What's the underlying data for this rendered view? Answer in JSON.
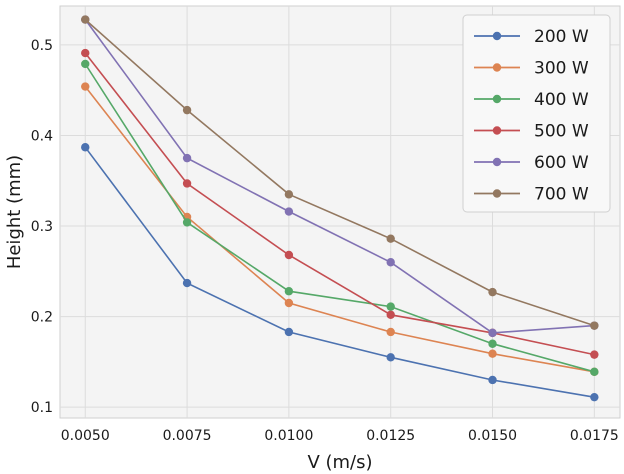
{
  "chart_data": {
    "type": "line",
    "title": "",
    "xlabel": "V (m/s)",
    "ylabel": "Height (mm)",
    "x": [
      0.005,
      0.0075,
      0.01,
      0.0125,
      0.015,
      0.0175
    ],
    "x_tick_labels": [
      "0.0050",
      "0.0075",
      "0.0100",
      "0.0125",
      "0.0150",
      "0.0175"
    ],
    "y_ticks": [
      0.1,
      0.2,
      0.3,
      0.4,
      0.5
    ],
    "y_tick_labels": [
      "0.1",
      "0.2",
      "0.3",
      "0.4",
      "0.5"
    ],
    "xlim": [
      0.00438,
      0.01813
    ],
    "ylim": [
      0.088,
      0.543
    ],
    "grid": true,
    "legend_position": "top-right",
    "series": [
      {
        "name": "200 W",
        "color": "#4c72b0",
        "values": [
          0.387,
          0.237,
          0.183,
          0.155,
          0.13,
          0.111
        ]
      },
      {
        "name": "300 W",
        "color": "#dd8452",
        "values": [
          0.454,
          0.31,
          0.215,
          0.183,
          0.159,
          0.139
        ]
      },
      {
        "name": "400 W",
        "color": "#55a868",
        "values": [
          0.479,
          0.304,
          0.228,
          0.211,
          0.17,
          0.139
        ]
      },
      {
        "name": "500 W",
        "color": "#c44e52",
        "values": [
          0.491,
          0.347,
          0.268,
          0.202,
          0.182,
          0.158
        ]
      },
      {
        "name": "600 W",
        "color": "#8172b3",
        "values": [
          0.528,
          0.375,
          0.316,
          0.26,
          0.182,
          0.19
        ]
      },
      {
        "name": "700 W",
        "color": "#937860",
        "values": [
          0.528,
          0.428,
          0.335,
          0.286,
          0.227,
          0.19
        ]
      }
    ]
  }
}
